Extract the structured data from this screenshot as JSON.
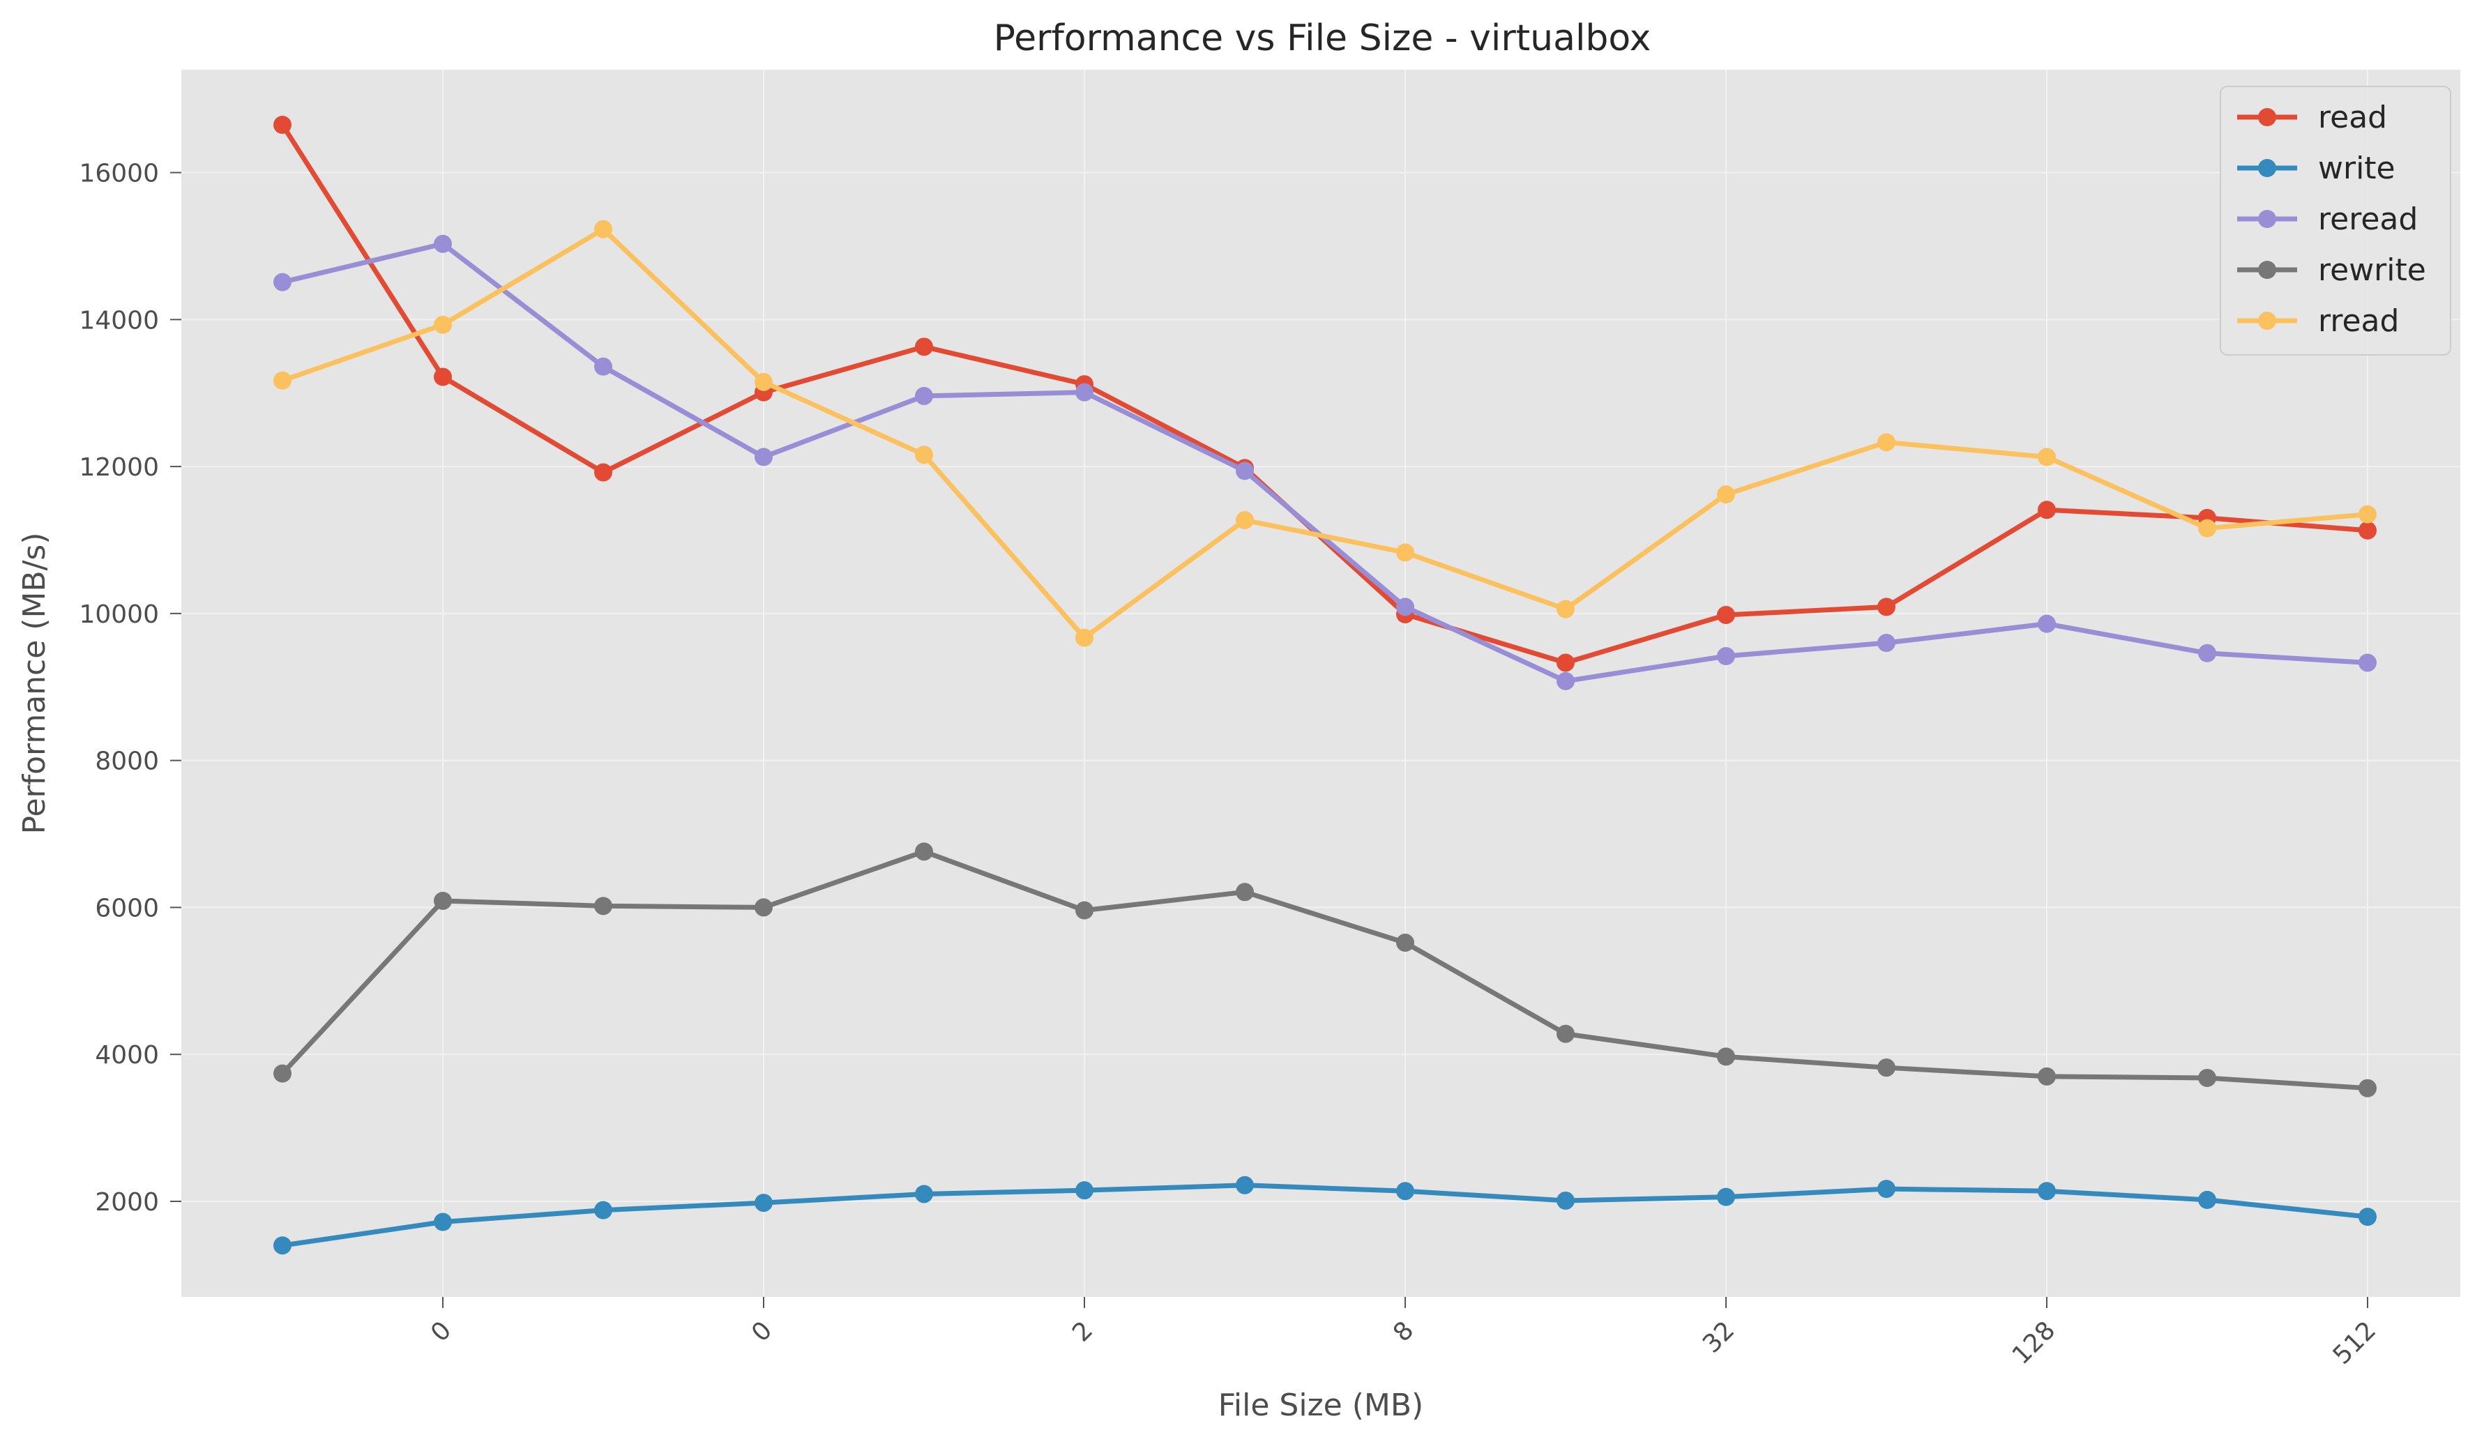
{
  "chart_data": {
    "type": "line",
    "title": "Performance vs File Size - virtualbox",
    "xlabel": "File Size (MB)",
    "ylabel": "Performance (MB/s)",
    "x_tick_labels": [
      "0",
      "0",
      "2",
      "8",
      "32",
      "128",
      "512"
    ],
    "y_ticks": [
      2000,
      4000,
      6000,
      8000,
      10000,
      12000,
      14000,
      16000
    ],
    "ylim": [
      700,
      17400
    ],
    "point_count": 14,
    "grid": true,
    "legend_position": "top-right",
    "background": "#e5e5e5",
    "series": [
      {
        "name": "read",
        "color": "#e24a33",
        "values": [
          16650,
          13220,
          11920,
          13010,
          13630,
          13120,
          11980,
          9990,
          9330,
          9980,
          10090,
          11410,
          11300,
          11130
        ]
      },
      {
        "name": "write",
        "color": "#348abd",
        "values": [
          1400,
          1720,
          1880,
          1980,
          2100,
          2150,
          2220,
          2140,
          2010,
          2060,
          2170,
          2140,
          2020,
          1790
        ]
      },
      {
        "name": "reread",
        "color": "#988ed5",
        "values": [
          14510,
          15030,
          13360,
          12130,
          12960,
          13010,
          11940,
          10090,
          9080,
          9420,
          9600,
          9860,
          9460,
          9330
        ]
      },
      {
        "name": "rewrite",
        "color": "#777777",
        "values": [
          3740,
          6090,
          6020,
          6000,
          6760,
          5960,
          6210,
          5520,
          4280,
          3970,
          3820,
          3700,
          3680,
          3540
        ]
      },
      {
        "name": "rread",
        "color": "#fbc15e",
        "values": [
          13170,
          13930,
          15230,
          13150,
          12160,
          9670,
          11270,
          10830,
          10060,
          11620,
          12330,
          12130,
          11160,
          11350
        ]
      }
    ]
  }
}
